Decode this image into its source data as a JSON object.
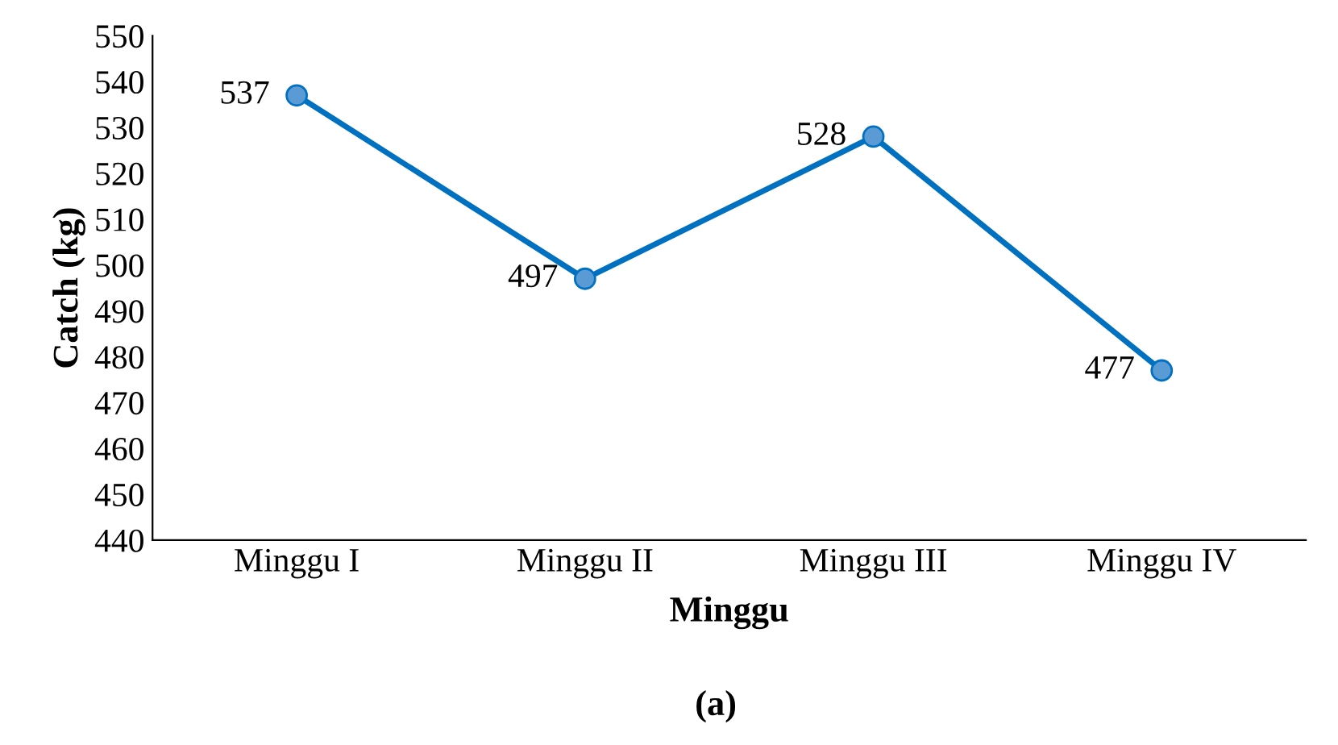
{
  "chart_data": {
    "type": "line",
    "xlabel": "Minggu",
    "ylabel": "Catch (kg)",
    "annotations": [
      "(a)"
    ],
    "categories": [
      "Minggu I",
      "Minggu II",
      "Minggu III",
      "Minggu IV"
    ],
    "series": [
      {
        "color": "#0070c0",
        "values": [
          537,
          497,
          528,
          477
        ]
      }
    ],
    "ylim": [
      440,
      550
    ],
    "yticks": [
      440,
      450,
      460,
      470,
      480,
      490,
      500,
      510,
      520,
      530,
      540,
      550
    ],
    "marker": "circle",
    "line_style": "solid",
    "data_labels": true,
    "grid": false,
    "legend": false
  }
}
